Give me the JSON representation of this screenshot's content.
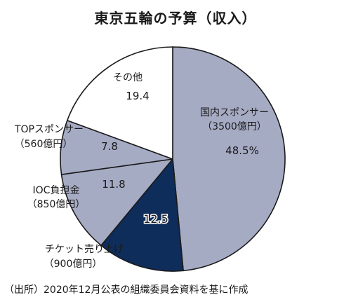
{
  "chart_data": {
    "type": "pie",
    "title": "東京五輪の予算（収入）",
    "unit": "%",
    "slices": [
      {
        "name": "国内スポンサー",
        "amount": "（3500億円）",
        "value": 48.5,
        "value_label": "48.5%",
        "color": "#a6abc4"
      },
      {
        "name": "チケット売り上げ",
        "amount": "（900億円）",
        "value": 12.5,
        "value_label": "12.5",
        "color": "#0f2d5a"
      },
      {
        "name": "IOC負担金",
        "amount": "（850億円）",
        "value": 11.8,
        "value_label": "11.8",
        "color": "#a6abc4"
      },
      {
        "name": "TOPスポンサー",
        "amount": "（560億円）",
        "value": 7.8,
        "value_label": "7.8",
        "color": "#a6abc4"
      },
      {
        "name": "その他",
        "amount": "",
        "value": 19.4,
        "value_label": "19.4",
        "color": "#ffffff"
      }
    ],
    "source": "（出所）2020年12月公表の組織委員会資料を基に作成"
  }
}
